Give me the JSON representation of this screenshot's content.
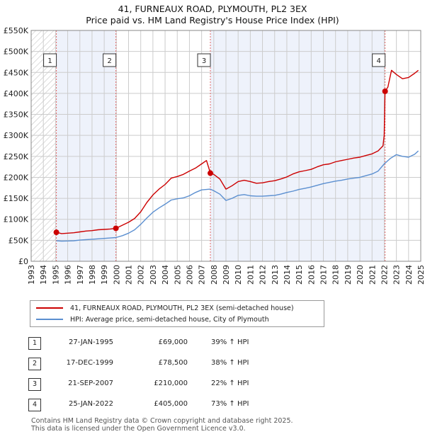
{
  "title_line1": "41, FURNEAUX ROAD, PLYMOUTH, PL2 3EX",
  "title_line2": "Price paid vs. HM Land Registry's House Price Index (HPI)",
  "legend": {
    "property_label": "41, FURNEAUX ROAD, PLYMOUTH, PL2 3EX (semi-detached house)",
    "hpi_label": "HPI: Average price, semi-detached house, City of Plymouth"
  },
  "colors": {
    "property": "#cc0000",
    "hpi": "#5b8fd0",
    "shade": "#eef2fb",
    "hatch": "#bbbbbb",
    "grid": "#cccccc",
    "marker_line": "#e06666"
  },
  "sales": [
    {
      "num": "1",
      "date": "27-JAN-1995",
      "price": "£69,000",
      "hpi_change": "39% ↑ HPI"
    },
    {
      "num": "2",
      "date": "17-DEC-1999",
      "price": "£78,500",
      "hpi_change": "38% ↑ HPI"
    },
    {
      "num": "3",
      "date": "21-SEP-2007",
      "price": "£210,000",
      "hpi_change": "22% ↑ HPI"
    },
    {
      "num": "4",
      "date": "25-JAN-2022",
      "price": "£405,000",
      "hpi_change": "73% ↑ HPI"
    }
  ],
  "footer_line1": "Contains HM Land Registry data © Crown copyright and database right 2025.",
  "footer_line2": "This data is licensed under the Open Government Licence v3.0.",
  "chart_data": {
    "type": "line",
    "title": "41, FURNEAUX ROAD, PLYMOUTH, PL2 3EX — Price paid vs. HM Land Registry's House Price Index (HPI)",
    "xlabel": "",
    "ylabel": "",
    "xlim": [
      1993,
      2025
    ],
    "ylim": [
      0,
      550000
    ],
    "grid": true,
    "legend_position": "below-chart",
    "x_ticks": [
      1993,
      1994,
      1995,
      1996,
      1997,
      1998,
      1999,
      2000,
      2001,
      2002,
      2003,
      2004,
      2005,
      2006,
      2007,
      2008,
      2009,
      2010,
      2011,
      2012,
      2013,
      2014,
      2015,
      2016,
      2017,
      2018,
      2019,
      2020,
      2021,
      2022,
      2023,
      2024,
      2025
    ],
    "y_ticks": [
      {
        "value": 0,
        "label": "£0"
      },
      {
        "value": 50000,
        "label": "£50K"
      },
      {
        "value": 100000,
        "label": "£100K"
      },
      {
        "value": 150000,
        "label": "£150K"
      },
      {
        "value": 200000,
        "label": "£200K"
      },
      {
        "value": 250000,
        "label": "£250K"
      },
      {
        "value": 300000,
        "label": "£300K"
      },
      {
        "value": 350000,
        "label": "£350K"
      },
      {
        "value": 400000,
        "label": "£400K"
      },
      {
        "value": 450000,
        "label": "£450K"
      },
      {
        "value": 500000,
        "label": "£500K"
      },
      {
        "value": 550000,
        "label": "£550K"
      }
    ],
    "shaded_ranges": [
      [
        1995.07,
        1999.96
      ],
      [
        2007.72,
        2022.07
      ]
    ],
    "hatched_range": [
      1993,
      1995.07
    ],
    "sale_markers": [
      {
        "label": "1",
        "x": 1995.07,
        "y": 69000
      },
      {
        "label": "2",
        "x": 1999.96,
        "y": 78500
      },
      {
        "label": "3",
        "x": 2007.72,
        "y": 210000
      },
      {
        "label": "4",
        "x": 2022.07,
        "y": 405000
      }
    ],
    "series": [
      {
        "name": "41, FURNEAUX ROAD, PLYMOUTH, PL2 3EX (semi-detached house)",
        "color": "#cc0000",
        "x": [
          1995.07,
          1995.5,
          1996,
          1996.5,
          1997,
          1997.5,
          1998,
          1998.5,
          1999,
          1999.5,
          1999.96,
          2000.5,
          2001,
          2001.5,
          2002,
          2002.5,
          2003,
          2003.5,
          2004,
          2004.5,
          2005,
          2005.5,
          2006,
          2006.5,
          2007,
          2007.4,
          2007.72,
          2008,
          2008.5,
          2009,
          2009.5,
          2010,
          2010.5,
          2011,
          2011.5,
          2012,
          2012.5,
          2013,
          2013.5,
          2014,
          2014.5,
          2015,
          2015.5,
          2016,
          2016.5,
          2017,
          2017.5,
          2018,
          2018.5,
          2019,
          2019.5,
          2020,
          2020.5,
          2021,
          2021.5,
          2021.9,
          2022,
          2022.07,
          2022.3,
          2022.6,
          2023,
          2023.5,
          2024,
          2024.5,
          2024.8
        ],
        "y": [
          69000,
          66000,
          67000,
          68000,
          70000,
          72000,
          73000,
          75000,
          76000,
          77000,
          78500,
          86000,
          93000,
          102000,
          118000,
          140000,
          158000,
          172000,
          183000,
          198000,
          202000,
          207000,
          215000,
          222000,
          232000,
          240000,
          210000,
          207000,
          196000,
          172000,
          180000,
          190000,
          193000,
          190000,
          186000,
          187000,
          190000,
          192000,
          196000,
          201000,
          208000,
          213000,
          216000,
          219000,
          225000,
          230000,
          232000,
          237000,
          240000,
          243000,
          246000,
          248000,
          252000,
          256000,
          263000,
          275000,
          300000,
          405000,
          415000,
          455000,
          445000,
          435000,
          438000,
          448000,
          455000
        ]
      },
      {
        "name": "HPI: Average price, semi-detached house, City of Plymouth",
        "color": "#5b8fd0",
        "x": [
          1995.07,
          1995.5,
          1996,
          1996.5,
          1997,
          1997.5,
          1998,
          1998.5,
          1999,
          1999.5,
          1999.96,
          2000.5,
          2001,
          2001.5,
          2002,
          2002.5,
          2003,
          2003.5,
          2004,
          2004.5,
          2005,
          2005.5,
          2006,
          2006.5,
          2007,
          2007.72,
          2008,
          2008.5,
          2009,
          2009.5,
          2010,
          2010.5,
          2011,
          2011.5,
          2012,
          2012.5,
          2013,
          2013.5,
          2014,
          2014.5,
          2015,
          2015.5,
          2016,
          2016.5,
          2017,
          2017.5,
          2018,
          2018.5,
          2019,
          2019.5,
          2020,
          2020.5,
          2021,
          2021.5,
          2022,
          2022.5,
          2023,
          2023.5,
          2024,
          2024.5,
          2024.8
        ],
        "y": [
          49000,
          48000,
          48500,
          49000,
          50500,
          51500,
          52500,
          53500,
          54500,
          55500,
          56500,
          61000,
          67000,
          75000,
          88000,
          103000,
          117000,
          127000,
          136000,
          146000,
          149000,
          151000,
          156000,
          164000,
          170000,
          172000,
          168000,
          160000,
          145000,
          150000,
          157000,
          159000,
          156000,
          155000,
          155000,
          156000,
          157000,
          160000,
          164000,
          167000,
          171000,
          174000,
          177000,
          181000,
          185000,
          188000,
          191000,
          193000,
          196000,
          198000,
          200000,
          204000,
          208000,
          215000,
          232000,
          245000,
          254000,
          250000,
          248000,
          255000,
          263000
        ]
      }
    ]
  }
}
